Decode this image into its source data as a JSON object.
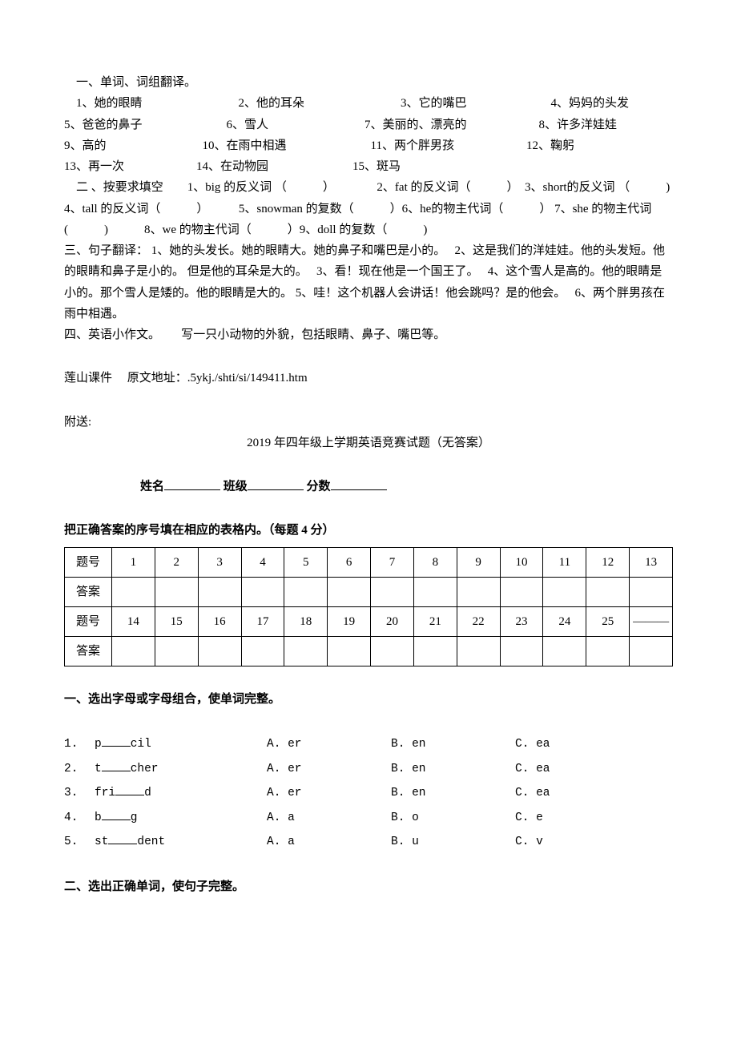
{
  "part1": {
    "title": "一、单词、词组翻译。",
    "items_flow": "1、她的眼睛　　　　　　　　2、他的耳朵　　　　　　　　3、它的嘴巴　　　　　　　4、妈妈的头发　　　　　　　5、爸爸的鼻子　　　　　　　6、雪人　　　　　　　　7、美丽的、漂亮的　　　　　　8、许多洋娃娃　　　　　　　9、高的　　　　　　　　10、在雨中相遇　　　　　　　11、两个胖男孩　　　　　　12、鞠躬　　　　　　　　13、再一次　　　　　　14、在动物园　　　　　　　15、斑马"
  },
  "part2": {
    "text": "　二 、按要求填空　　1、big 的反义词 （　　　）　　　　2、fat 的反义词（　　　）　3、short的反义词 （　　　) 4、tall 的反义词（　　　）　　　5、snowman 的复数（　　　）6、he的物主代词（　　　） 7、she 的物主代词(　　　)　　　8、we 的物主代词（　　　）9、doll 的复数（　　　)"
  },
  "part3": {
    "text": "三、句子翻译：  1、她的头发长。她的眼睛大。她的鼻子和嘴巴是小的。　 2、这是我们的洋娃娃。他的头发短。他的眼睛和鼻子是小的。 但是他的耳朵是大的。　 3、看！现在他是一个国王了。　 4、这个雪人是高的。他的眼睛是小的。那个雪人是矮的。他的眼睛是大的。  5、哇！这个机器人会讲话！他会跳吗？是的他会。　 6、两个胖男孩在雨中相遇。"
  },
  "part4": {
    "text": "四、英语小作文。　　 写一只小动物的外貌，包括眼睛、鼻子、嘴巴等。"
  },
  "source": "莲山课件　 原文地址：.5ykj./shti/si/149411.htm",
  "attach_label": "附送:",
  "exam": {
    "title": "2019 年四年级上学期英语竞赛试题（无答案）",
    "name_line": {
      "name": "姓名",
      "class": "班级",
      "score": "分数"
    },
    "instruction": "把正确答案的序号填在相应的表格内。（每题 4 分）",
    "table": {
      "row_label": "题号",
      "ans_label": "答案",
      "row1": [
        "1",
        "2",
        "3",
        "4",
        "5",
        "6",
        "7",
        "8",
        "9",
        "10",
        "11",
        "12",
        "13"
      ],
      "row2": [
        "14",
        "15",
        "16",
        "17",
        "18",
        "19",
        "20",
        "21",
        "22",
        "23",
        "24",
        "25",
        "———"
      ]
    },
    "sectionA_title": "一、选出字母或字母组合，使单词完整。",
    "sectionA": [
      {
        "n": "1.",
        "pre": "p",
        "post": "cil",
        "a": "A. er",
        "b": "B. en",
        "c": "C. ea"
      },
      {
        "n": "2.",
        "pre": "t",
        "post": "cher",
        "a": "A. er",
        "b": "B. en",
        "c": "C. ea"
      },
      {
        "n": "3.",
        "pre": "fri",
        "post": "d",
        "a": "A. er",
        "b": "B. en",
        "c": "C. ea"
      },
      {
        "n": "4.",
        "pre": "b",
        "post": "g",
        "a": "A. a",
        "b": "B. o",
        "c": "C. e"
      },
      {
        "n": "5.",
        "pre": "st",
        "post": "dent",
        "a": "A. a",
        "b": "B. u",
        "c": "C. v"
      }
    ],
    "sectionB_title": "二、选出正确单词，使句子完整。"
  }
}
